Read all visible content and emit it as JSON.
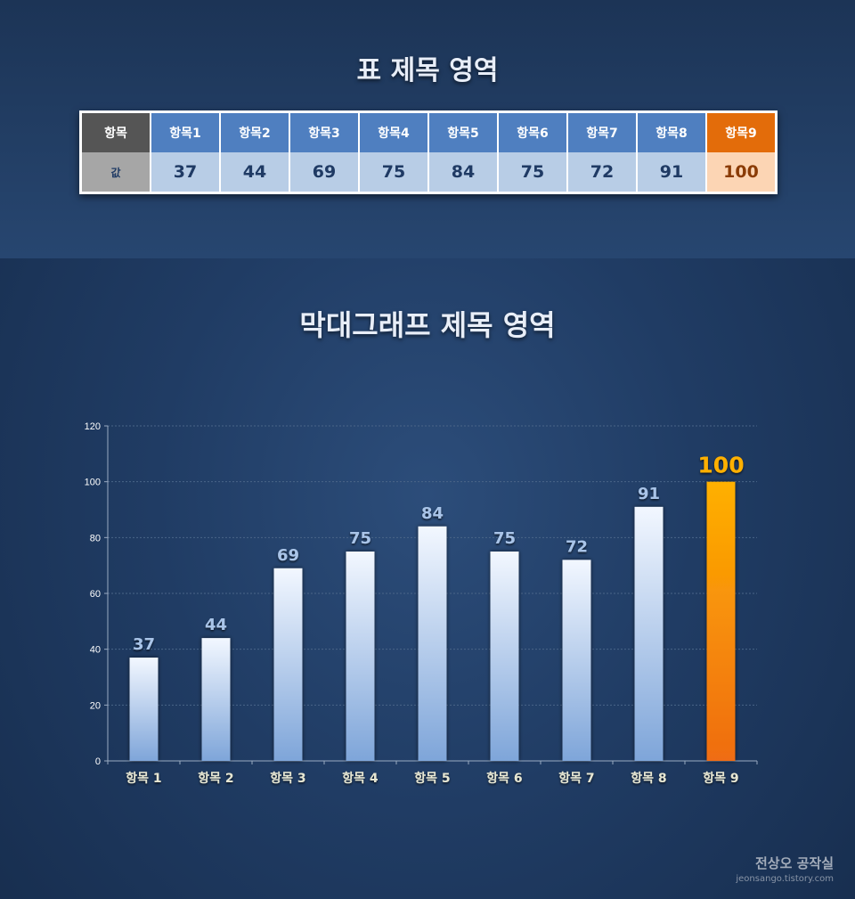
{
  "table_title": "표 제목 영역",
  "table": {
    "row_header": "항목",
    "value_header": "값",
    "columns": [
      "항목1",
      "항목2",
      "항목3",
      "항목4",
      "항목5",
      "항목6",
      "항목7",
      "항목8",
      "항목9"
    ],
    "values": [
      "37",
      "44",
      "69",
      "75",
      "84",
      "75",
      "72",
      "91",
      "100"
    ]
  },
  "chart_title": "막대그래프 제목 영역",
  "chart_data": {
    "type": "bar",
    "title": "막대그래프 제목 영역",
    "categories": [
      "항목 1",
      "항목 2",
      "항목 3",
      "항목 4",
      "항목 5",
      "항목 6",
      "항목 7",
      "항목 8",
      "항목 9"
    ],
    "values": [
      37,
      44,
      69,
      75,
      84,
      75,
      72,
      91,
      100
    ],
    "value_labels": [
      "37",
      "44",
      "69",
      "75",
      "84",
      "75",
      "72",
      "91",
      "100"
    ],
    "ylim": [
      0,
      120
    ],
    "yticks": [
      "0",
      "20",
      "40",
      "60",
      "80",
      "100",
      "120"
    ],
    "highlight_index": 8,
    "grid": true,
    "colors": {
      "bar_top": "#f2f7ff",
      "bar_bottom": "#7ea5d9",
      "highlight_top": "#ffb000",
      "highlight_bottom": "#ef6c12",
      "table_header": "#4f7fc0",
      "table_value": "#b8cde6",
      "table_highlight_header": "#e36c0a",
      "table_highlight_value": "#fcd5b4"
    }
  },
  "watermark": {
    "title": "전상오 공작실",
    "url": "jeonsango.tistory.com"
  }
}
